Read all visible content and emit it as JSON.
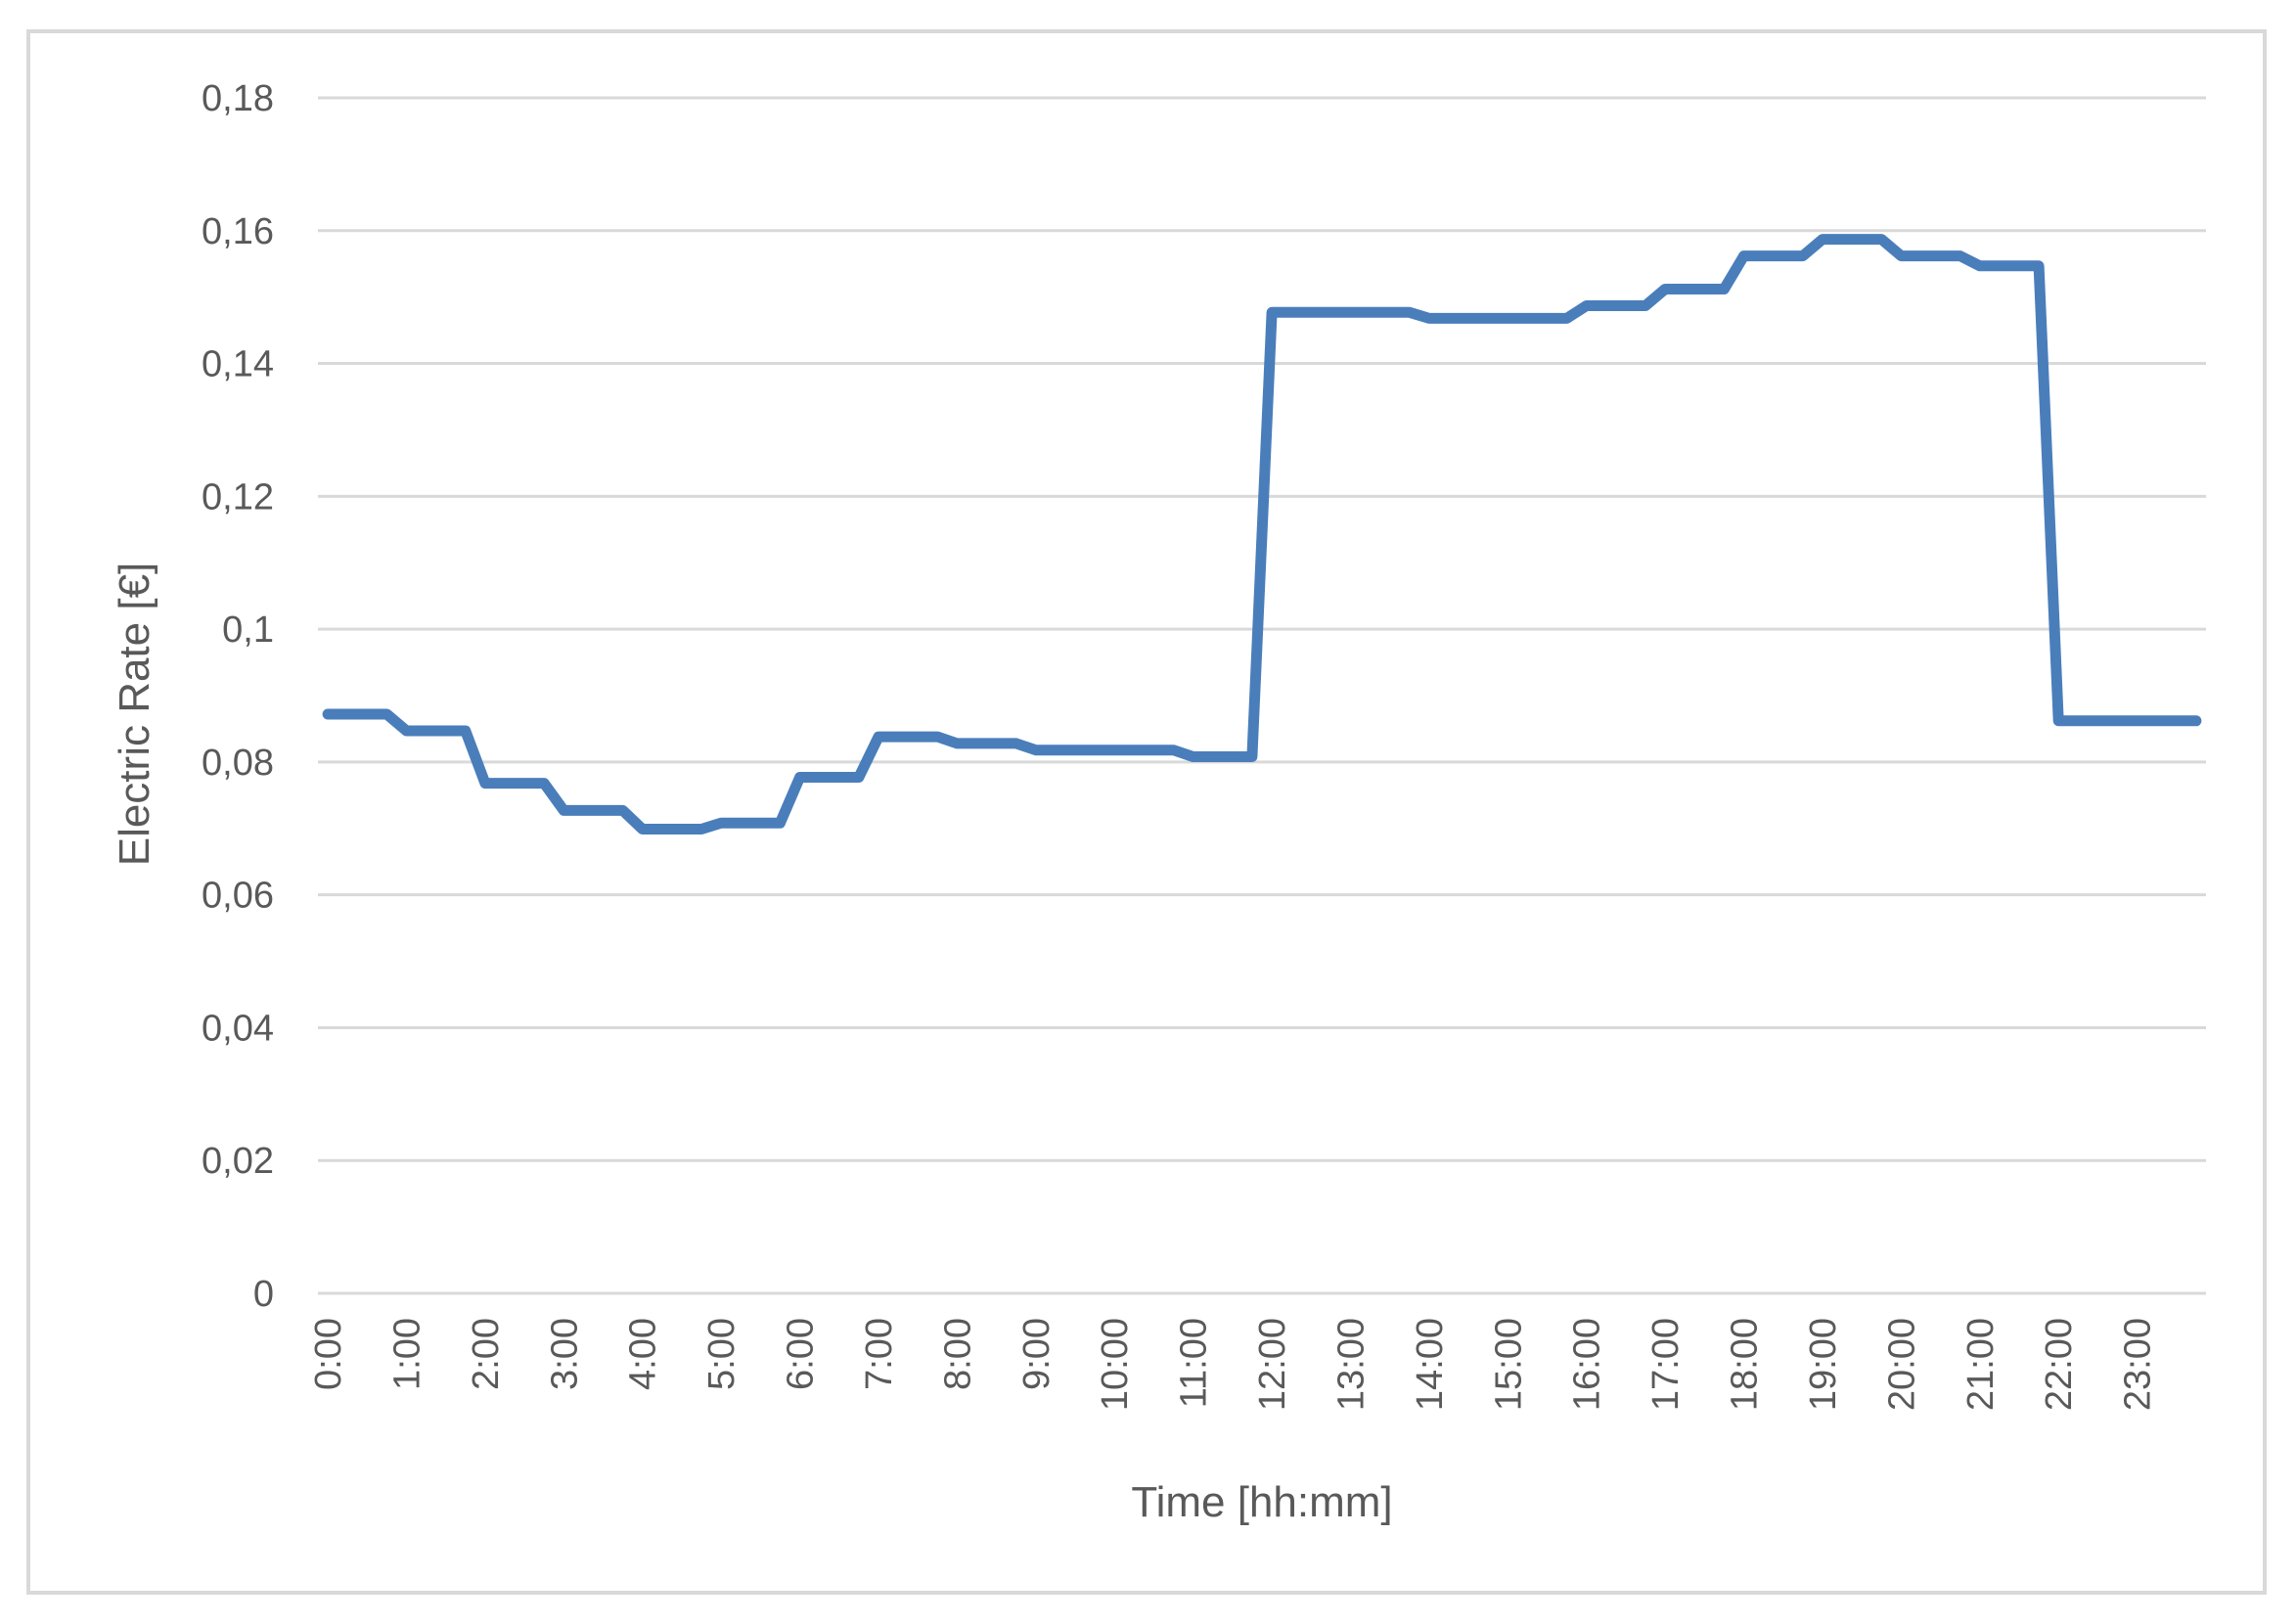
{
  "chart_data": {
    "type": "line",
    "title": "",
    "xlabel": "Time [hh:mm]",
    "ylabel": "Electric Rate [€]",
    "ylim": [
      0,
      0.18
    ],
    "grid": true,
    "legend": "none",
    "y_ticks": [
      "0",
      "0,02",
      "0,04",
      "0,06",
      "0,08",
      "0,1",
      "0,12",
      "0,14",
      "0,16",
      "0,18"
    ],
    "x_ticks": [
      "0:00",
      "1:00",
      "2:00",
      "3:00",
      "4:00",
      "5:00",
      "6:00",
      "7:00",
      "8:00",
      "9:00",
      "10:00",
      "11:00",
      "12:00",
      "13:00",
      "14:00",
      "15:00",
      "16:00",
      "17:00",
      "18:00",
      "19:00",
      "20:00",
      "21:00",
      "22:00",
      "23:00"
    ],
    "colors": {
      "series": "#4a7ebb",
      "grid": "#d9d9d9",
      "text": "#595959"
    },
    "series": [
      {
        "x": [
          "0:00",
          "0:15",
          "0:30",
          "0:45",
          "1:00",
          "1:15",
          "1:30",
          "1:45",
          "2:00",
          "2:15",
          "2:30",
          "2:45",
          "3:00",
          "3:15",
          "3:30",
          "3:45",
          "4:00",
          "4:15",
          "4:30",
          "4:45",
          "5:00",
          "5:15",
          "5:30",
          "5:45",
          "6:00",
          "6:15",
          "6:30",
          "6:45",
          "7:00",
          "7:15",
          "7:30",
          "7:45",
          "8:00",
          "8:15",
          "8:30",
          "8:45",
          "9:00",
          "9:15",
          "9:30",
          "9:45",
          "10:00",
          "10:15",
          "10:30",
          "10:45",
          "11:00",
          "11:15",
          "11:30",
          "11:45",
          "12:00",
          "12:15",
          "12:30",
          "12:45",
          "13:00",
          "13:15",
          "13:30",
          "13:45",
          "14:00",
          "14:15",
          "14:30",
          "14:45",
          "15:00",
          "15:15",
          "15:30",
          "15:45",
          "16:00",
          "16:15",
          "16:30",
          "16:45",
          "17:00",
          "17:15",
          "17:30",
          "17:45",
          "18:00",
          "18:15",
          "18:30",
          "18:45",
          "19:00",
          "19:15",
          "19:30",
          "19:45",
          "20:00",
          "20:15",
          "20:30",
          "20:45",
          "21:00",
          "21:15",
          "21:30",
          "21:45",
          "22:00",
          "22:15",
          "22:30",
          "22:45",
          "23:00",
          "23:15",
          "23:30",
          "23:45"
        ],
        "values": [
          0.0872,
          0.0872,
          0.0872,
          0.0872,
          0.0847,
          0.0847,
          0.0847,
          0.0847,
          0.0768,
          0.0768,
          0.0768,
          0.0768,
          0.0727,
          0.0727,
          0.0727,
          0.0727,
          0.0699,
          0.0699,
          0.0699,
          0.0699,
          0.0708,
          0.0708,
          0.0708,
          0.0708,
          0.0777,
          0.0777,
          0.0777,
          0.0777,
          0.0838,
          0.0838,
          0.0838,
          0.0838,
          0.0828,
          0.0828,
          0.0828,
          0.0828,
          0.0818,
          0.0818,
          0.0818,
          0.0818,
          0.0818,
          0.0818,
          0.0818,
          0.0818,
          0.0808,
          0.0808,
          0.0808,
          0.0808,
          0.1477,
          0.1477,
          0.1477,
          0.1477,
          0.1477,
          0.1477,
          0.1477,
          0.1477,
          0.1468,
          0.1468,
          0.1468,
          0.1468,
          0.1468,
          0.1468,
          0.1468,
          0.1468,
          0.1487,
          0.1487,
          0.1487,
          0.1487,
          0.1512,
          0.1512,
          0.1512,
          0.1512,
          0.1562,
          0.1562,
          0.1562,
          0.1562,
          0.1587,
          0.1587,
          0.1587,
          0.1587,
          0.1562,
          0.1562,
          0.1562,
          0.1562,
          0.1547,
          0.1547,
          0.1547,
          0.1547,
          0.0862,
          0.0862,
          0.0862,
          0.0862,
          0.0862,
          0.0862,
          0.0862,
          0.0862
        ]
      }
    ]
  }
}
